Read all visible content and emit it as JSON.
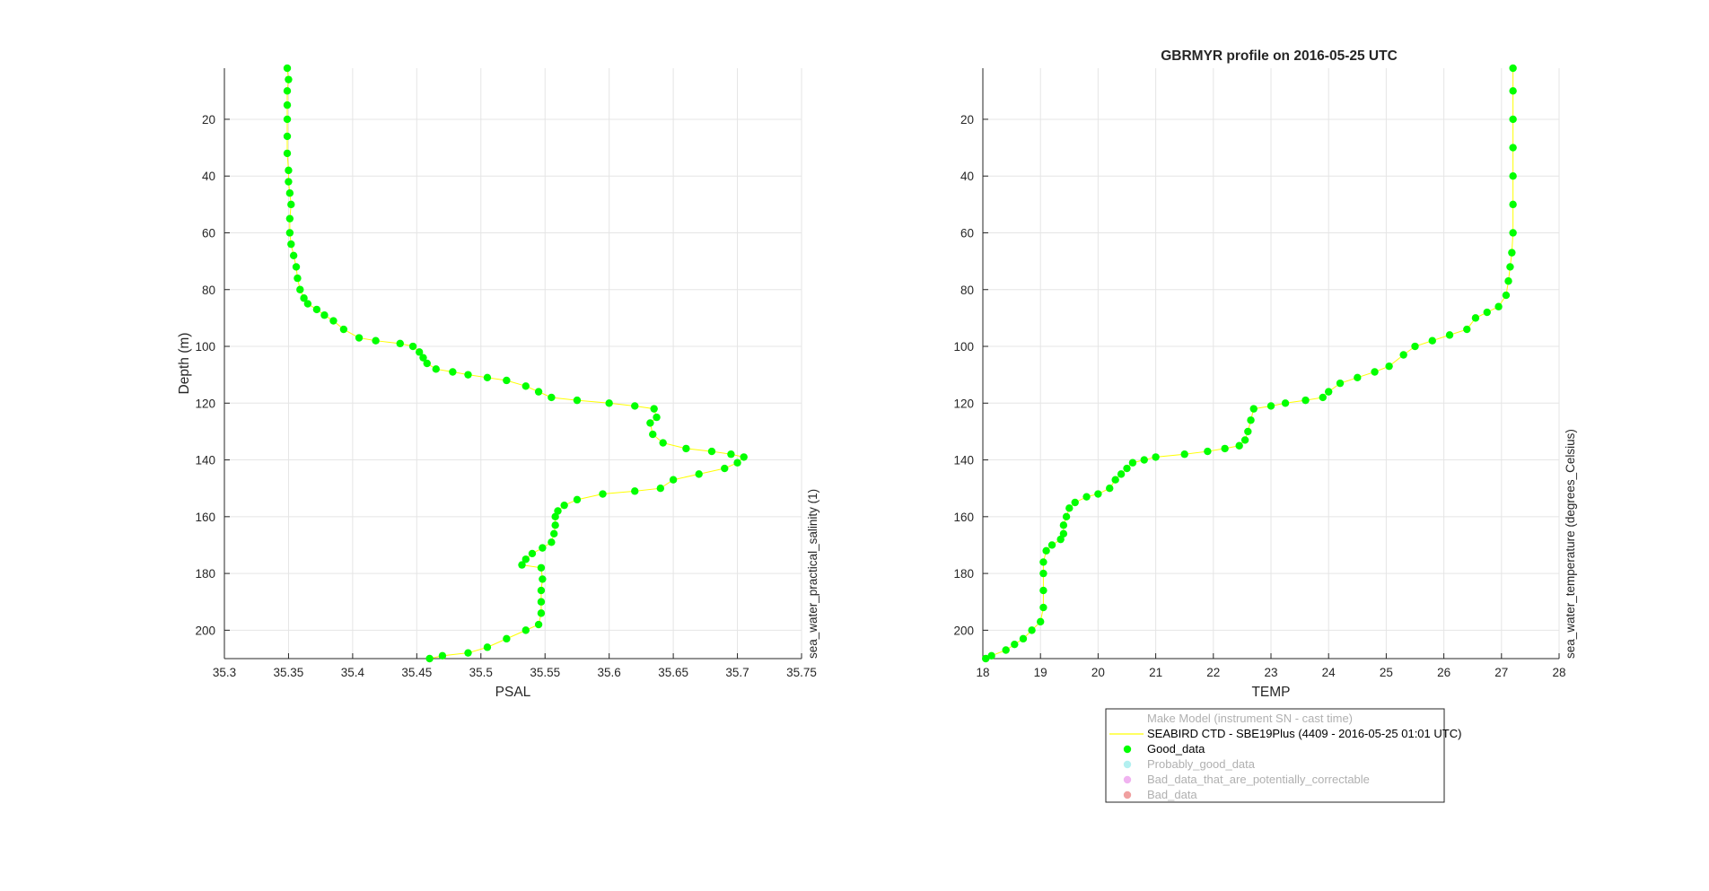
{
  "title": "GBRMYR profile on 2016-05-25 UTC",
  "chart_data": [
    {
      "type": "scatter",
      "xlabel": "PSAL",
      "ylabel": "Depth (m)",
      "side_label": "sea_water_practical_salinity (1)",
      "xlim": [
        35.3,
        35.75
      ],
      "ylim": [
        210,
        2
      ],
      "y_reversed": true,
      "grid": true,
      "x_ticks": [
        "35.3",
        "35.35",
        "35.4",
        "35.45",
        "35.5",
        "35.55",
        "35.6",
        "35.65",
        "35.7",
        "35.75"
      ],
      "y_ticks": [
        "20",
        "40",
        "60",
        "80",
        "100",
        "120",
        "140",
        "160",
        "180",
        "200"
      ],
      "series": [
        {
          "color": "#00ff00",
          "points": [
            [
              35.349,
              2
            ],
            [
              35.35,
              6
            ],
            [
              35.349,
              10
            ],
            [
              35.349,
              15
            ],
            [
              35.349,
              20
            ],
            [
              35.349,
              26
            ],
            [
              35.349,
              32
            ],
            [
              35.35,
              38
            ],
            [
              35.35,
              42
            ],
            [
              35.351,
              46
            ],
            [
              35.352,
              50
            ],
            [
              35.351,
              55
            ],
            [
              35.351,
              60
            ],
            [
              35.352,
              64
            ],
            [
              35.354,
              68
            ],
            [
              35.356,
              72
            ],
            [
              35.357,
              76
            ],
            [
              35.359,
              80
            ],
            [
              35.362,
              83
            ],
            [
              35.365,
              85
            ],
            [
              35.372,
              87
            ],
            [
              35.378,
              89
            ],
            [
              35.385,
              91
            ],
            [
              35.393,
              94
            ],
            [
              35.405,
              97
            ],
            [
              35.418,
              98
            ],
            [
              35.437,
              99
            ],
            [
              35.447,
              100
            ],
            [
              35.452,
              102
            ],
            [
              35.455,
              104
            ],
            [
              35.458,
              106
            ],
            [
              35.465,
              108
            ],
            [
              35.478,
              109
            ],
            [
              35.49,
              110
            ],
            [
              35.505,
              111
            ],
            [
              35.52,
              112
            ],
            [
              35.535,
              114
            ],
            [
              35.545,
              116
            ],
            [
              35.555,
              118
            ],
            [
              35.575,
              119
            ],
            [
              35.6,
              120
            ],
            [
              35.62,
              121
            ],
            [
              35.635,
              122
            ],
            [
              35.637,
              125
            ],
            [
              35.632,
              127
            ],
            [
              35.634,
              131
            ],
            [
              35.642,
              134
            ],
            [
              35.66,
              136
            ],
            [
              35.68,
              137
            ],
            [
              35.695,
              138
            ],
            [
              35.705,
              139
            ],
            [
              35.7,
              141
            ],
            [
              35.69,
              143
            ],
            [
              35.67,
              145
            ],
            [
              35.65,
              147
            ],
            [
              35.64,
              150
            ],
            [
              35.62,
              151
            ],
            [
              35.595,
              152
            ],
            [
              35.575,
              154
            ],
            [
              35.565,
              156
            ],
            [
              35.56,
              158
            ],
            [
              35.558,
              160
            ],
            [
              35.558,
              163
            ],
            [
              35.557,
              166
            ],
            [
              35.555,
              169
            ],
            [
              35.548,
              171
            ],
            [
              35.54,
              173
            ],
            [
              35.535,
              175
            ],
            [
              35.532,
              177
            ],
            [
              35.547,
              178
            ],
            [
              35.548,
              182
            ],
            [
              35.547,
              186
            ],
            [
              35.547,
              190
            ],
            [
              35.547,
              194
            ],
            [
              35.545,
              198
            ],
            [
              35.535,
              200
            ],
            [
              35.52,
              203
            ],
            [
              35.505,
              206
            ],
            [
              35.49,
              208
            ],
            [
              35.47,
              209
            ],
            [
              35.46,
              210
            ]
          ]
        }
      ]
    },
    {
      "type": "scatter",
      "xlabel": "TEMP",
      "ylabel": "",
      "side_label": "sea_water_temperature (degrees_Celsius)",
      "xlim": [
        18,
        28
      ],
      "ylim": [
        210,
        2
      ],
      "y_reversed": true,
      "grid": true,
      "x_ticks": [
        "18",
        "19",
        "20",
        "21",
        "22",
        "23",
        "24",
        "25",
        "26",
        "27",
        "28"
      ],
      "y_ticks": [
        "20",
        "40",
        "60",
        "80",
        "100",
        "120",
        "140",
        "160",
        "180",
        "200"
      ],
      "series": [
        {
          "name": "SEABIRD CTD - SBE19Plus (4409 - 2016-05-25 01:01 UTC)",
          "color": "#00ff00",
          "line_color": "#ffff00",
          "points": [
            [
              27.2,
              2
            ],
            [
              27.2,
              10
            ],
            [
              27.2,
              20
            ],
            [
              27.2,
              30
            ],
            [
              27.2,
              40
            ],
            [
              27.2,
              50
            ],
            [
              27.2,
              60
            ],
            [
              27.18,
              67
            ],
            [
              27.15,
              72
            ],
            [
              27.12,
              77
            ],
            [
              27.08,
              82
            ],
            [
              26.95,
              86
            ],
            [
              26.75,
              88
            ],
            [
              26.55,
              90
            ],
            [
              26.4,
              94
            ],
            [
              26.1,
              96
            ],
            [
              25.8,
              98
            ],
            [
              25.5,
              100
            ],
            [
              25.3,
              103
            ],
            [
              25.05,
              107
            ],
            [
              24.8,
              109
            ],
            [
              24.5,
              111
            ],
            [
              24.2,
              113
            ],
            [
              24.0,
              116
            ],
            [
              23.9,
              118
            ],
            [
              23.6,
              119
            ],
            [
              23.25,
              120
            ],
            [
              23.0,
              121
            ],
            [
              22.7,
              122
            ],
            [
              22.65,
              126
            ],
            [
              22.6,
              130
            ],
            [
              22.55,
              133
            ],
            [
              22.45,
              135
            ],
            [
              22.2,
              136
            ],
            [
              21.9,
              137
            ],
            [
              21.5,
              138
            ],
            [
              21.0,
              139
            ],
            [
              20.8,
              140
            ],
            [
              20.6,
              141
            ],
            [
              20.5,
              143
            ],
            [
              20.4,
              145
            ],
            [
              20.3,
              147
            ],
            [
              20.2,
              150
            ],
            [
              20.0,
              152
            ],
            [
              19.8,
              153
            ],
            [
              19.6,
              155
            ],
            [
              19.5,
              157
            ],
            [
              19.45,
              160
            ],
            [
              19.4,
              163
            ],
            [
              19.4,
              166
            ],
            [
              19.35,
              168
            ],
            [
              19.2,
              170
            ],
            [
              19.1,
              172
            ],
            [
              19.05,
              176
            ],
            [
              19.05,
              180
            ],
            [
              19.05,
              186
            ],
            [
              19.05,
              192
            ],
            [
              19.0,
              197
            ],
            [
              18.85,
              200
            ],
            [
              18.7,
              203
            ],
            [
              18.55,
              205
            ],
            [
              18.4,
              207
            ],
            [
              18.15,
              209
            ],
            [
              18.05,
              210
            ]
          ]
        }
      ],
      "legend": {
        "placement": "below",
        "header": "Make Model (instrument SN - cast time)",
        "entries": [
          {
            "label": "SEABIRD CTD - SBE19Plus (4409 - 2016-05-25 01:01 UTC)",
            "marker": "line",
            "color": "#ffff00",
            "active": true
          },
          {
            "label": "Good_data",
            "marker": "dot",
            "color": "#00ff00",
            "active": true
          },
          {
            "label": "Probably_good_data",
            "marker": "dot",
            "color": "#b3f0f0",
            "active": false
          },
          {
            "label": "Bad_data_that_are_potentially_correctable",
            "marker": "dot",
            "color": "#f0b3f0",
            "active": false
          },
          {
            "label": "Bad_data",
            "marker": "dot",
            "color": "#f0a0a0",
            "active": false
          }
        ]
      }
    }
  ]
}
